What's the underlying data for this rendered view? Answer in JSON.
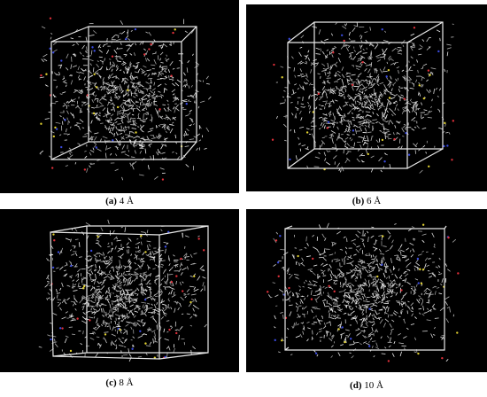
{
  "panels": [
    {
      "label": "(a)",
      "caption": "4 Å"
    },
    {
      "label": "(b)",
      "caption": "6 Å"
    },
    {
      "label": "(c)",
      "caption": "8 Å"
    },
    {
      "label": "(d)",
      "caption": "10 Å"
    }
  ]
}
